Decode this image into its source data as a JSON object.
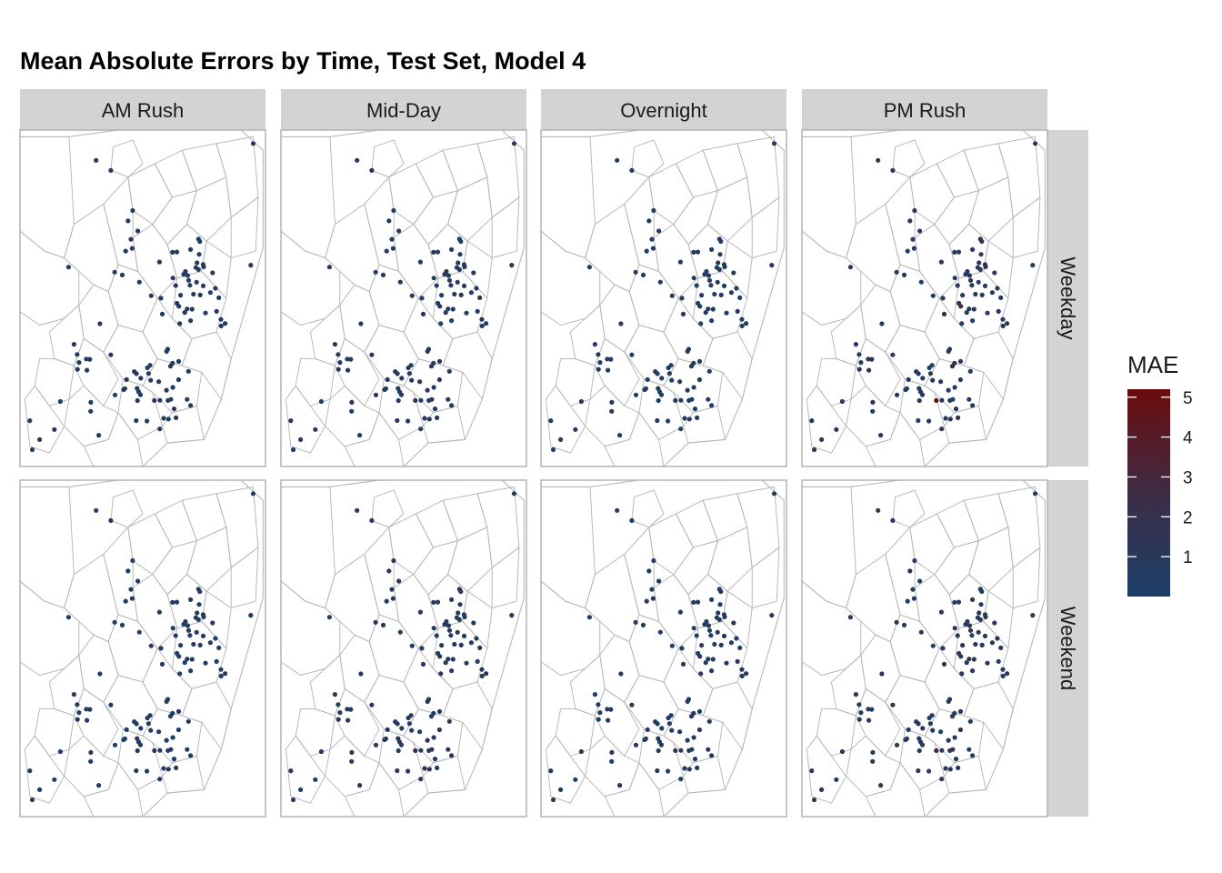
{
  "title": "Mean Absolute Errors by Time, Test Set, Model 4",
  "colors": {
    "low": "#1b3f68",
    "mid": "#3a2f4a",
    "high": "#6a0c0c",
    "boundary": "#b3b3b3",
    "strip": "#d3d3d3",
    "panel_border": "#b3b3b3"
  },
  "facets": {
    "columns": [
      "AM Rush",
      "Mid-Day",
      "Overnight",
      "PM Rush"
    ],
    "rows": [
      "Weekday",
      "Weekend"
    ]
  },
  "legend": {
    "title": "MAE",
    "ticks": [
      {
        "value": 1,
        "label": "1"
      },
      {
        "value": 2,
        "label": "2"
      },
      {
        "value": 3,
        "label": "3"
      },
      {
        "value": 4,
        "label": "4"
      },
      {
        "value": 5,
        "label": "5"
      }
    ],
    "range": [
      0,
      5.2
    ]
  },
  "chart_data": {
    "type": "scatter",
    "mark": "points on map of station locations, colored by MAE",
    "color_variable": "MAE",
    "panels": [
      {
        "column": "AM Rush",
        "row": "Weekday",
        "typical_mae": 0.6,
        "max_mae": 2.4
      },
      {
        "column": "Mid-Day",
        "row": "Weekday",
        "typical_mae": 0.7,
        "max_mae": 2.5
      },
      {
        "column": "Overnight",
        "row": "Weekday",
        "typical_mae": 0.5,
        "max_mae": 2.0
      },
      {
        "column": "PM Rush",
        "row": "Weekday",
        "typical_mae": 0.9,
        "max_mae": 5.0
      },
      {
        "column": "AM Rush",
        "row": "Weekend",
        "typical_mae": 0.4,
        "max_mae": 1.4
      },
      {
        "column": "Mid-Day",
        "row": "Weekend",
        "typical_mae": 0.8,
        "max_mae": 2.8
      },
      {
        "column": "Overnight",
        "row": "Weekend",
        "typical_mae": 0.6,
        "max_mae": 2.2
      },
      {
        "column": "PM Rush",
        "row": "Weekend",
        "typical_mae": 0.9,
        "max_mae": 3.2
      }
    ]
  }
}
